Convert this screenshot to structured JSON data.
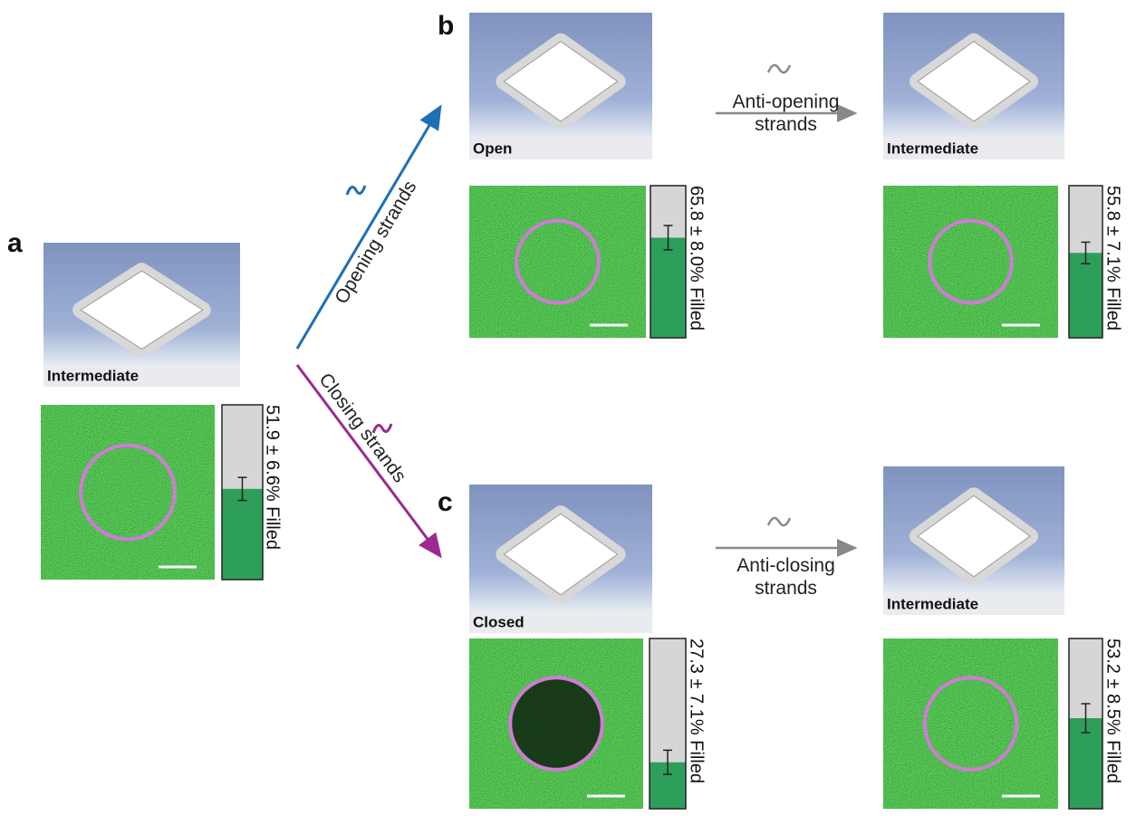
{
  "panel_letters": [
    "a",
    "b",
    "c"
  ],
  "panels": [
    {
      "state": "Intermediate",
      "fill": {
        "value": 51.9,
        "error": 6.6,
        "label": "51.9 ± 6.6% Filled"
      }
    },
    {
      "state": "Open",
      "fill": {
        "value": 65.8,
        "error": 8.0,
        "label": "65.8 ± 8.0% Filled"
      }
    },
    {
      "state": "Intermediate",
      "fill": {
        "value": 55.8,
        "error": 7.1,
        "label": "55.8 ± 7.1% Filled"
      }
    },
    {
      "state": "Closed",
      "fill": {
        "value": 27.3,
        "error": 7.1,
        "label": "27.3 ± 7.1% Filled"
      }
    },
    {
      "state": "Intermediate",
      "fill": {
        "value": 53.2,
        "error": 8.5,
        "label": "53.2 ± 8.5% Filled"
      }
    }
  ],
  "arrows": [
    {
      "label": "Opening strands"
    },
    {
      "label": "Closing strands"
    },
    {
      "label": "Anti-opening strands"
    },
    {
      "label": "Anti-closing strands"
    }
  ]
}
